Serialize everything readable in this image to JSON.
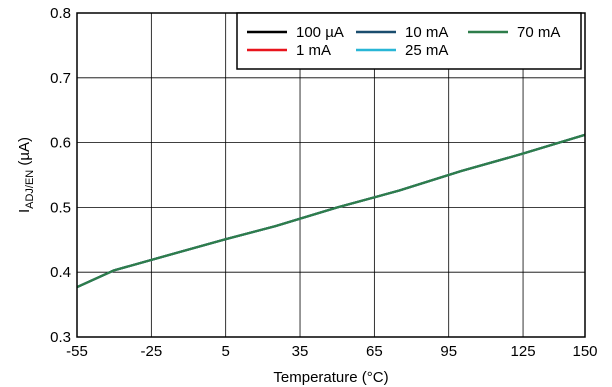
{
  "chart_data": {
    "type": "line",
    "title": "",
    "xlabel": "Temperature (°C)",
    "ylabel_main": "I",
    "ylabel_sub": "ADJ/EN",
    "ylabel_unit": " (µA)",
    "xlim": [
      -55,
      150
    ],
    "ylim": [
      0.3,
      0.8
    ],
    "x_ticks": [
      -55,
      -25,
      5,
      35,
      65,
      95,
      125,
      150
    ],
    "y_ticks": [
      0.3,
      0.4,
      0.5,
      0.6,
      0.7,
      0.8
    ],
    "y_tick_labels": [
      "0.3",
      "0.4",
      "0.5",
      "0.6",
      "0.7",
      "0.8"
    ],
    "grid": true,
    "legend_position": "top-right",
    "series": [
      {
        "name": "100 µA",
        "color": "#000000",
        "x": [
          -55,
          -40,
          -25,
          5,
          25,
          50,
          75,
          100,
          125,
          150
        ],
        "y": [
          0.377,
          0.403,
          0.419,
          0.451,
          0.471,
          0.5,
          0.526,
          0.556,
          0.583,
          0.612
        ]
      },
      {
        "name": "1 mA",
        "color": "#e8141c",
        "x": [
          -55,
          -40,
          -25,
          5,
          25,
          50,
          75,
          100,
          125,
          150
        ],
        "y": [
          0.377,
          0.403,
          0.419,
          0.451,
          0.471,
          0.5,
          0.526,
          0.556,
          0.583,
          0.612
        ]
      },
      {
        "name": "10 mA",
        "color": "#1a4d6e",
        "x": [
          -55,
          -40,
          -25,
          5,
          25,
          50,
          75,
          100,
          125,
          150
        ],
        "y": [
          0.377,
          0.403,
          0.419,
          0.451,
          0.471,
          0.5,
          0.526,
          0.556,
          0.583,
          0.612
        ]
      },
      {
        "name": "25 mA",
        "color": "#29b6d6",
        "x": [
          -55,
          -40,
          -25,
          5,
          25,
          50,
          75,
          100,
          125,
          150
        ],
        "y": [
          0.377,
          0.403,
          0.419,
          0.451,
          0.471,
          0.5,
          0.526,
          0.556,
          0.583,
          0.612
        ]
      },
      {
        "name": "70 mA",
        "color": "#2e7d4a",
        "x": [
          -55,
          -40,
          -25,
          5,
          25,
          50,
          75,
          100,
          125,
          150
        ],
        "y": [
          0.377,
          0.403,
          0.419,
          0.451,
          0.471,
          0.5,
          0.526,
          0.556,
          0.583,
          0.612
        ]
      }
    ]
  }
}
